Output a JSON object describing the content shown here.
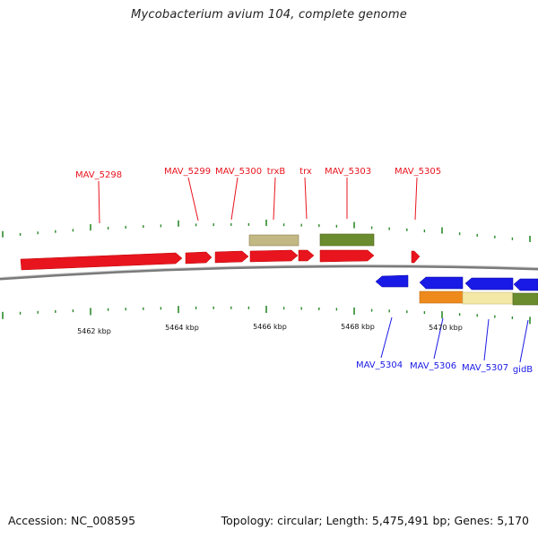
{
  "title": "Mycobacterium avium 104, complete genome",
  "accession": "Accession: NC_008595",
  "topology": "Topology: circular; Length: 5,475,491 bp; Genes: 5,170",
  "colors": {
    "forward_gene": "#e8141e",
    "reverse_gene": "#1a1ae6",
    "backbone": "#7a7a7a",
    "ticks": "#2b8a2b",
    "khaki": "#c2b884",
    "olive": "#6b8c2e",
    "orange": "#ee8a1c",
    "cream": "#f3e8a6"
  },
  "forward_labels": [
    "MAV_5298",
    "MAV_5299",
    "MAV_5300",
    "trxB",
    "trx",
    "MAV_5303",
    "MAV_5305"
  ],
  "reverse_labels": [
    "MAV_5304",
    "MAV_5306",
    "MAV_5307",
    "gidB"
  ],
  "kbp_labels": [
    "5462 kbp",
    "5464 kbp",
    "5466 kbp",
    "5468 kbp",
    "5470 kbp"
  ]
}
